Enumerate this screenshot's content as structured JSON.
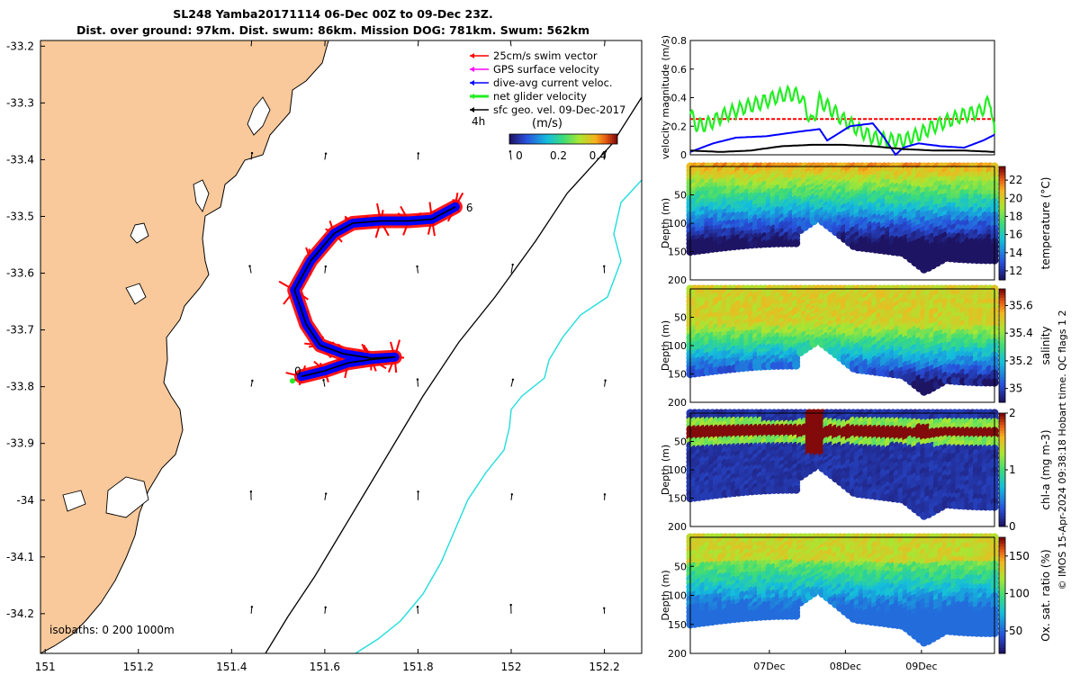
{
  "title": {
    "line1": "SL248 Yamba20171114 06-Dec 00Z to 09-Dec 23Z.",
    "line2": "Dist. over ground: 97km. Dist. swum: 86km. Mission DOG: 781km. Swum: 562km"
  },
  "credit": "© IMOS 15-Apr-2024 09:38:18 Hobart time. QC flags 1  2",
  "colors": {
    "land": "#f9c99b",
    "swim_vector": "#ff0000",
    "gps_velocity": "#ff00ff",
    "dive_avg": "#0000ff",
    "net_glider": "#22ee22",
    "sfc_geo": "#000000",
    "isobath_200": "#000000",
    "isobath_1000": "#22dddd"
  },
  "chart_data": [
    {
      "type": "scatter",
      "name": "glider-track-map",
      "x_ticks": [
        "151",
        "151.2",
        "151.4",
        "151.6",
        "151.8",
        "152",
        "152.2"
      ],
      "y_ticks": [
        "-33.2",
        "-33.3",
        "-33.4",
        "-33.5",
        "-33.6",
        "-33.7",
        "-33.8",
        "-33.9",
        "-34",
        "-34.1",
        "-34.2"
      ],
      "xlim": [
        150.99,
        152.28
      ],
      "ylim": [
        -34.27,
        -33.19
      ],
      "legend": {
        "placement": "top-right",
        "entries": [
          "25cm/s swim vector",
          "GPS surface velocity",
          "dive-avg current veloc.",
          "net glider velocity",
          "sfc geo. vel. 09-Dec-2017"
        ],
        "arrow_scale_label": "4h"
      },
      "colorbar": {
        "label": "(m/s)",
        "ticks": [
          "0",
          "0.2",
          "0.4"
        ],
        "range": [
          -0.05,
          0.5
        ]
      },
      "track_markers": [
        "0",
        "6"
      ],
      "track": [
        [
          151.55,
          -33.782
        ],
        [
          151.6,
          -33.772
        ],
        [
          151.65,
          -33.758
        ],
        [
          151.7,
          -33.752
        ],
        [
          151.75,
          -33.748
        ],
        [
          151.7,
          -33.75
        ],
        [
          151.64,
          -33.742
        ],
        [
          151.59,
          -33.727
        ],
        [
          151.56,
          -33.69
        ],
        [
          151.535,
          -33.63
        ],
        [
          151.57,
          -33.578
        ],
        [
          151.62,
          -33.53
        ],
        [
          151.66,
          -33.512
        ],
        [
          151.72,
          -33.508
        ],
        [
          151.78,
          -33.508
        ],
        [
          151.83,
          -33.505
        ],
        [
          151.88,
          -33.483
        ]
      ],
      "isobaths_label": "isobaths: 0   200   1000m"
    },
    {
      "type": "line",
      "name": "velocity-magnitude",
      "ylabel": "velocity magnitude (m/s)",
      "y_ticks": [
        "0",
        "0.2",
        "0.4",
        "0.6",
        "0.8"
      ],
      "ylim": [
        0,
        0.8
      ],
      "xlim": [
        0,
        4
      ],
      "series": [
        {
          "name": "25cm/s swim vector",
          "color": "#ff0000",
          "x": [
            0,
            4
          ],
          "y": [
            0.25,
            0.25
          ]
        },
        {
          "name": "net glider velocity",
          "color": "#22ee22",
          "x": [
            0,
            0.1,
            0.25,
            0.45,
            0.7,
            0.9,
            1.1,
            1.3,
            1.45,
            1.6,
            1.7,
            1.85,
            2.0,
            2.2,
            2.4,
            2.6,
            2.8,
            3.0,
            3.2,
            3.4,
            3.6,
            3.8,
            3.95,
            4.0
          ],
          "y": [
            0.28,
            0.2,
            0.22,
            0.28,
            0.33,
            0.36,
            0.4,
            0.43,
            0.41,
            0.22,
            0.38,
            0.32,
            0.25,
            0.18,
            0.12,
            0.1,
            0.1,
            0.14,
            0.2,
            0.24,
            0.28,
            0.3,
            0.38,
            0.15
          ]
        },
        {
          "name": "dive-avg current veloc.",
          "color": "#0000ff",
          "x": [
            0,
            0.3,
            0.6,
            1.0,
            1.4,
            1.7,
            1.8,
            2.1,
            2.4,
            2.55,
            2.7,
            2.8,
            3.0,
            3.3,
            3.6,
            3.85,
            4.0
          ],
          "y": [
            0.02,
            0.08,
            0.12,
            0.13,
            0.16,
            0.18,
            0.1,
            0.2,
            0.22,
            0.12,
            0.0,
            0.05,
            0.08,
            0.06,
            0.05,
            0.1,
            0.14
          ]
        },
        {
          "name": "sfc geo. vel. 09-Dec-2017",
          "color": "#000000",
          "x": [
            0,
            0.4,
            0.8,
            1.2,
            1.6,
            2.0,
            2.4,
            2.8,
            3.2,
            3.6,
            4.0
          ],
          "y": [
            0.03,
            0.02,
            0.03,
            0.06,
            0.07,
            0.07,
            0.06,
            0.04,
            0.03,
            0.03,
            0.02
          ]
        }
      ]
    },
    {
      "type": "heatmap",
      "name": "temperature-section",
      "ylabel": "Depth (m)",
      "y_ticks": [
        "50",
        "100",
        "150",
        "200"
      ],
      "colorbar_label": "temperature (°C)",
      "colorbar_ticks": [
        "12",
        "14",
        "16",
        "18",
        "20",
        "22"
      ],
      "clim": [
        11,
        23.5
      ]
    },
    {
      "type": "heatmap",
      "name": "salinity-section",
      "ylabel": "Depth (m)",
      "y_ticks": [
        "50",
        "100",
        "150",
        "200"
      ],
      "colorbar_label": "salinity",
      "colorbar_ticks": [
        "35",
        "35.2",
        "35.4",
        "35.6"
      ],
      "clim": [
        34.9,
        35.72
      ]
    },
    {
      "type": "heatmap",
      "name": "chlorophyll-section",
      "ylabel": "Depth (m)",
      "y_ticks": [
        "50",
        "100",
        "150",
        "200"
      ],
      "colorbar_label": "chl-a (mg m-3)",
      "colorbar_ticks": [
        "0",
        "1",
        "2"
      ],
      "clim": [
        0,
        2
      ]
    },
    {
      "type": "heatmap",
      "name": "oxygen-section",
      "ylabel": "Depth (m)",
      "y_ticks": [
        "50",
        "100",
        "150",
        "200"
      ],
      "colorbar_label": "Ox. sat. ratio (%)",
      "colorbar_ticks": [
        "50",
        "100",
        "150"
      ],
      "clim": [
        20,
        175
      ],
      "x_ticks": [
        "07Dec",
        "08Dec",
        "09Dec"
      ]
    }
  ]
}
